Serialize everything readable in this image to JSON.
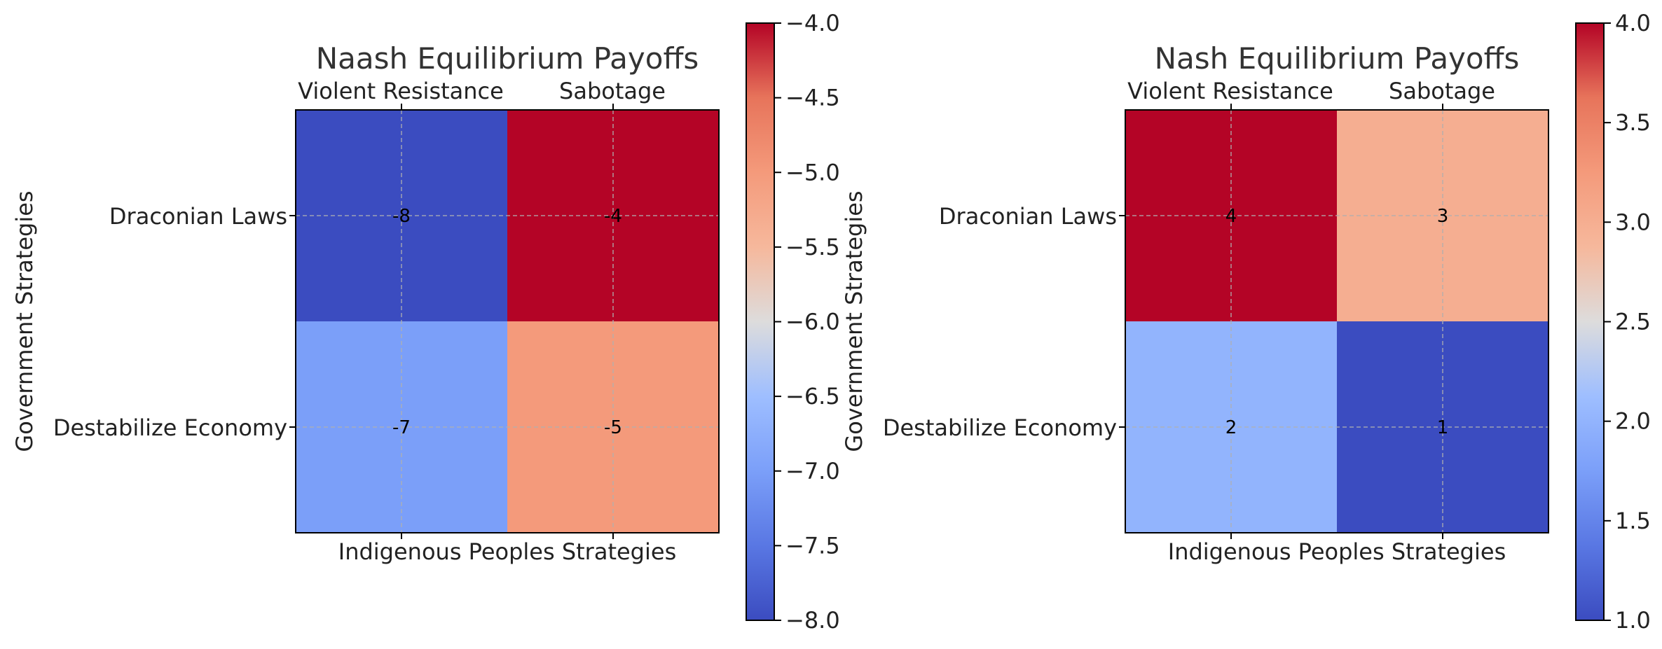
{
  "chart_data": [
    {
      "type": "heatmap",
      "title": "Naash Equilibrium Payoffs",
      "xlabel": "Indigenous Peoples Strategies",
      "ylabel": "Government Strategies",
      "columns": [
        "Violent Resistance",
        "Sabotage"
      ],
      "rows": [
        "Draconian Laws",
        "Destabilize Economy"
      ],
      "values": [
        [
          -8,
          -4
        ],
        [
          -7,
          -5
        ]
      ],
      "cell_labels": [
        [
          "-8",
          "-4"
        ],
        [
          "-7",
          "-5"
        ]
      ],
      "colormap": "coolwarm",
      "colorbar_range": [
        -8.0,
        -4.0
      ],
      "colorbar_ticks": [
        -4.0,
        -4.5,
        -5.0,
        -5.5,
        -6.0,
        -6.5,
        -7.0,
        -7.5,
        -8.0
      ],
      "colorbar_tick_labels": [
        "−4.0",
        "−4.5",
        "−5.0",
        "−5.5",
        "−6.0",
        "−6.5",
        "−7.0",
        "−7.5",
        "−8.0"
      ],
      "grid": true
    },
    {
      "type": "heatmap",
      "title": "Nash Equilibrium Payoffs",
      "xlabel": "Indigenous Peoples Strategies",
      "ylabel": "Government Strategies",
      "columns": [
        "Violent Resistance",
        "Sabotage"
      ],
      "rows": [
        "Draconian Laws",
        "Destabilize Economy"
      ],
      "values": [
        [
          4,
          3
        ],
        [
          2,
          1
        ]
      ],
      "cell_labels": [
        [
          "4",
          "3"
        ],
        [
          "2",
          "1"
        ]
      ],
      "colormap": "coolwarm",
      "colorbar_range": [
        1.0,
        4.0
      ],
      "colorbar_ticks": [
        4.0,
        3.5,
        3.0,
        2.5,
        2.0,
        1.5,
        1.0
      ],
      "colorbar_tick_labels": [
        "4.0",
        "3.5",
        "3.0",
        "2.5",
        "2.0",
        "1.5",
        "1.0"
      ],
      "grid": true
    }
  ]
}
